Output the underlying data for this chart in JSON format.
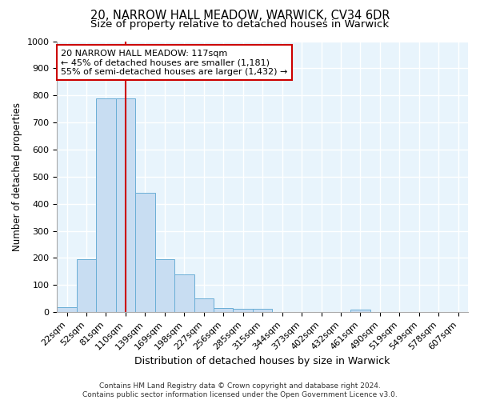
{
  "title1": "20, NARROW HALL MEADOW, WARWICK, CV34 6DR",
  "title2": "Size of property relative to detached houses in Warwick",
  "xlabel": "Distribution of detached houses by size in Warwick",
  "ylabel": "Number of detached properties",
  "bar_labels": [
    "22sqm",
    "52sqm",
    "81sqm",
    "110sqm",
    "139sqm",
    "169sqm",
    "198sqm",
    "227sqm",
    "256sqm",
    "285sqm",
    "315sqm",
    "344sqm",
    "373sqm",
    "402sqm",
    "432sqm",
    "461sqm",
    "490sqm",
    "519sqm",
    "549sqm",
    "578sqm",
    "607sqm"
  ],
  "bar_values": [
    18,
    195,
    790,
    790,
    440,
    195,
    140,
    50,
    15,
    12,
    12,
    0,
    0,
    0,
    0,
    10,
    0,
    0,
    0,
    0,
    0
  ],
  "bar_color": "#c8ddf2",
  "bar_edge_color": "#6aaed6",
  "bar_width": 1.0,
  "vline_x_index": 3,
  "vline_color": "#cc0000",
  "annotation_line1": "20 NARROW HALL MEADOW: 117sqm",
  "annotation_line2": "← 45% of detached houses are smaller (1,181)",
  "annotation_line3": "55% of semi-detached houses are larger (1,432) →",
  "annotation_box_color": "#ffffff",
  "annotation_box_edge_color": "#cc0000",
  "ylim": [
    0,
    1000
  ],
  "yticks": [
    0,
    100,
    200,
    300,
    400,
    500,
    600,
    700,
    800,
    900,
    1000
  ],
  "background_color": "#e8f4fc",
  "grid_color": "#ffffff",
  "footnote": "Contains HM Land Registry data © Crown copyright and database right 2024.\nContains public sector information licensed under the Open Government Licence v3.0.",
  "title1_fontsize": 10.5,
  "title2_fontsize": 9.5,
  "xlabel_fontsize": 9,
  "ylabel_fontsize": 8.5,
  "tick_fontsize": 8,
  "annotation_fontsize": 8,
  "footnote_fontsize": 6.5
}
